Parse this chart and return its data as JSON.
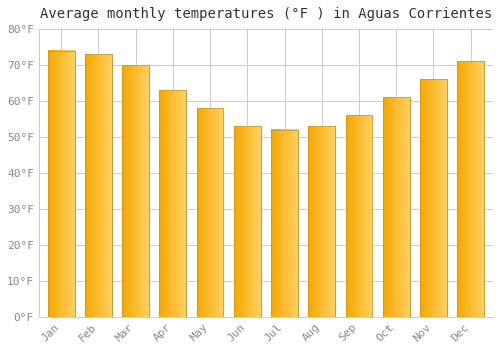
{
  "title": "Average monthly temperatures (°F ) in Aguas Corrientes",
  "months": [
    "Jan",
    "Feb",
    "Mar",
    "Apr",
    "May",
    "Jun",
    "Jul",
    "Aug",
    "Sep",
    "Oct",
    "Nov",
    "Dec"
  ],
  "values": [
    74,
    73,
    70,
    63,
    58,
    53,
    52,
    53,
    56,
    61,
    66,
    71
  ],
  "bar_color_left": "#F5A800",
  "bar_color_right": "#FFD060",
  "bar_edge_color": "#C8922A",
  "background_color": "#FFFFFF",
  "grid_color": "#CCCCCC",
  "tick_label_color": "#888888",
  "title_color": "#333333",
  "ylim": [
    0,
    80
  ],
  "ytick_step": 10,
  "ylabel_suffix": "°F",
  "title_fontsize": 10,
  "tick_fontsize": 8,
  "font_family": "monospace"
}
